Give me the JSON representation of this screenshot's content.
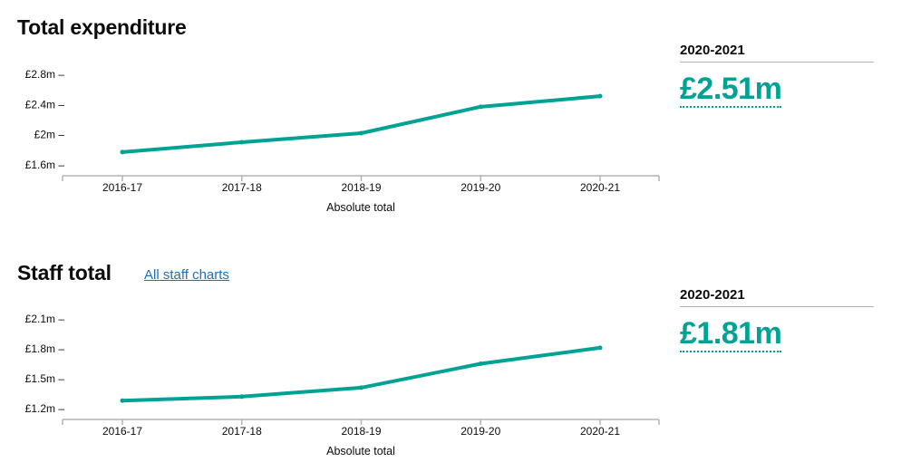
{
  "sections": [
    {
      "heading": "Total expenditure",
      "stat": {
        "label": "2020-2021",
        "value": "£2.51m"
      }
    },
    {
      "heading": "Staff total",
      "link": "All staff charts",
      "stat": {
        "label": "2020-2021",
        "value": "£1.81m"
      }
    }
  ],
  "chart_data": [
    {
      "type": "line",
      "title": "Total expenditure",
      "xlabel": "Absolute total",
      "ylabel": "",
      "categories": [
        "2016-17",
        "2017-18",
        "2018-19",
        "2019-20",
        "2020-21"
      ],
      "series": [
        {
          "values": [
            1.77,
            1.9,
            2.02,
            2.37,
            2.51
          ]
        }
      ],
      "yticks": [
        1.6,
        2.0,
        2.4,
        2.8
      ],
      "ytick_labels": [
        "£1.6m",
        "£2m",
        "£2.4m",
        "£2.8m"
      ],
      "ylim": [
        1.6,
        2.8
      ],
      "color": "#00a393",
      "grid": false
    },
    {
      "type": "line",
      "title": "Staff total",
      "xlabel": "Absolute total",
      "ylabel": "",
      "categories": [
        "2016-17",
        "2017-18",
        "2018-19",
        "2019-20",
        "2020-21"
      ],
      "series": [
        {
          "values": [
            1.28,
            1.32,
            1.41,
            1.65,
            1.81
          ]
        }
      ],
      "yticks": [
        1.2,
        1.5,
        1.8,
        2.1
      ],
      "ytick_labels": [
        "£1.2m",
        "£1.5m",
        "£1.8m",
        "£2.1m"
      ],
      "ylim": [
        1.2,
        2.1
      ],
      "color": "#00a393",
      "grid": false
    }
  ]
}
